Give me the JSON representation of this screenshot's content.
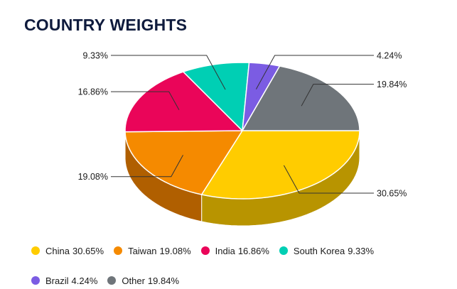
{
  "title": "COUNTRY WEIGHTS",
  "chart_data": {
    "type": "pie",
    "title": "COUNTRY WEIGHTS",
    "slices": [
      {
        "name": "China",
        "value": 30.65,
        "label": "30.65%",
        "color": "#ffcc00",
        "side_color": "#b89400"
      },
      {
        "name": "Taiwan",
        "value": 19.08,
        "label": "19.08%",
        "color": "#f58a00",
        "side_color": "#b05f00"
      },
      {
        "name": "India",
        "value": 16.86,
        "label": "16.86%",
        "color": "#ea0559",
        "side_color": "#a5033f"
      },
      {
        "name": "South Korea",
        "value": 9.33,
        "label": "9.33%",
        "color": "#00cfb4",
        "side_color": "#00917f"
      },
      {
        "name": "Brazil",
        "value": 4.24,
        "label": "4.24%",
        "color": "#7b5ce3",
        "side_color": "#56409f"
      },
      {
        "name": "Other",
        "value": 19.84,
        "label": "19.84%",
        "color": "#6f757a",
        "side_color": "#4d5256"
      }
    ]
  }
}
